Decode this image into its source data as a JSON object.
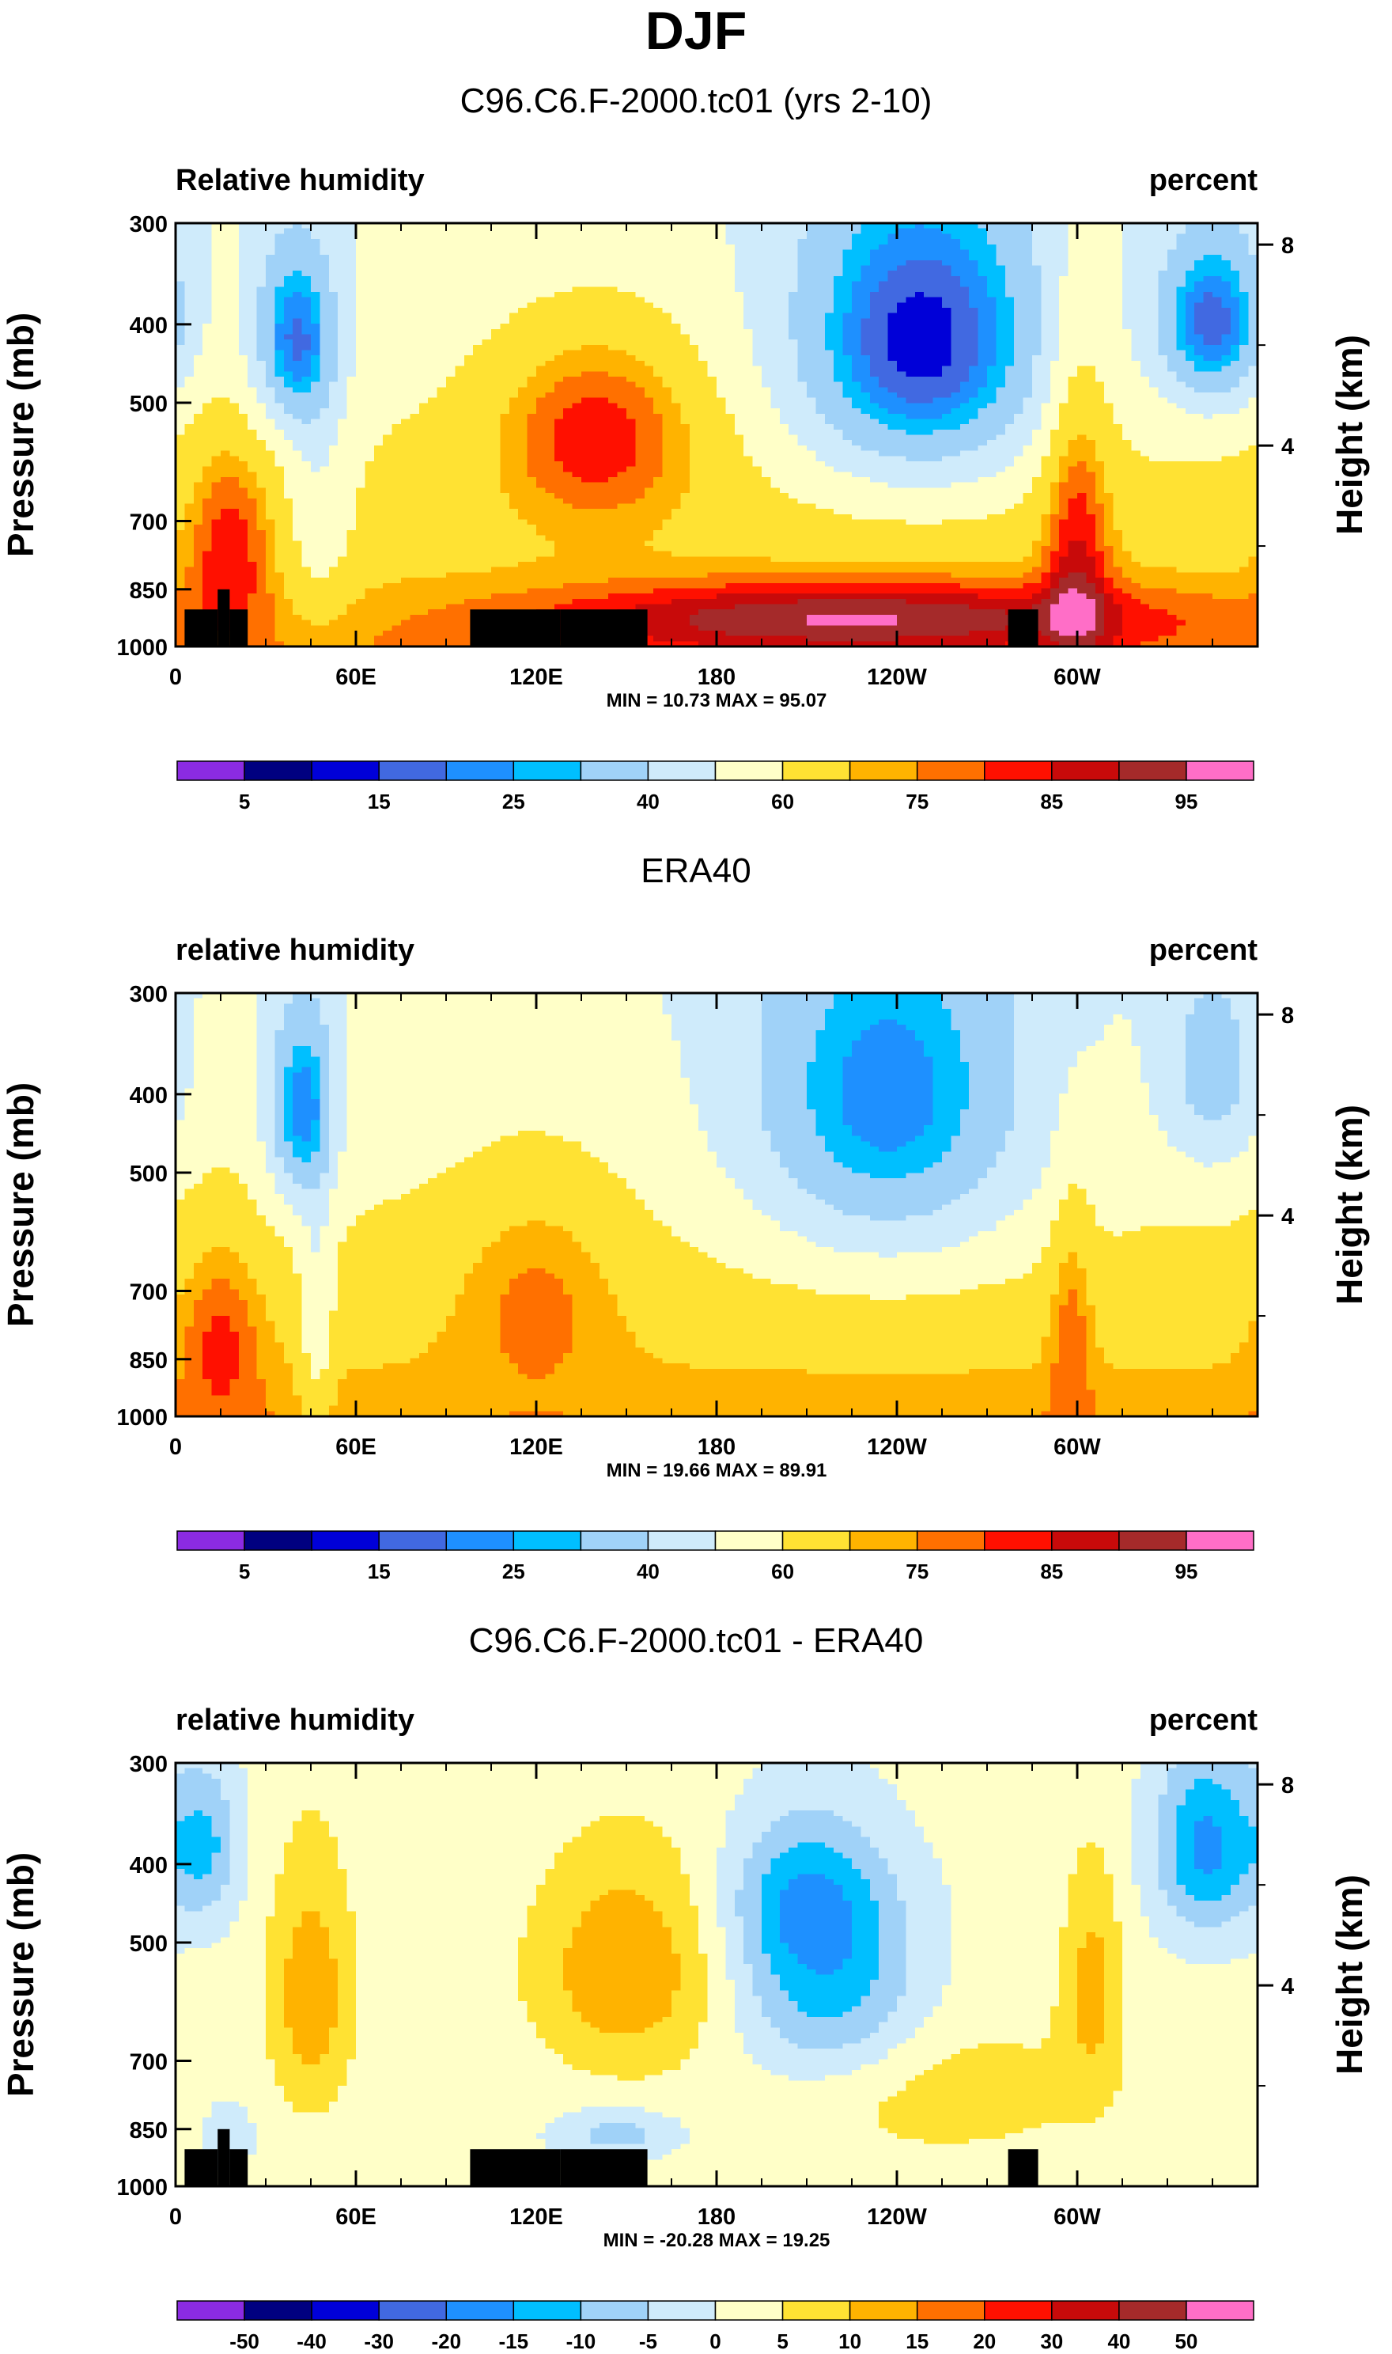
{
  "figure": {
    "title": "DJF"
  },
  "colors": {
    "levels_palette": [
      "#8b2be2",
      "#000080",
      "#0000d8",
      "#4169e1",
      "#1e90ff",
      "#00bfff",
      "#a0d2f8",
      "#cfebfb",
      "#ffffc8",
      "#ffe233",
      "#ffb300",
      "#ff7000",
      "#ff1000",
      "#c80a0a",
      "#a52a2a",
      "#ff6ec7"
    ],
    "mask": "#000000"
  },
  "chart_data": [
    {
      "type": "heatmap",
      "title": "C96.C6.F-2000.tc01 (yrs 2-10)",
      "left_label": "Relative humidity",
      "right_label": "percent",
      "ylabel": "Pressure (mb)",
      "y2label": "Height (km)",
      "y_ticks": [
        "300",
        "400",
        "500",
        "700",
        "850",
        "1000"
      ],
      "y_tick_values": [
        300,
        400,
        500,
        700,
        850,
        1000
      ],
      "y2_ticks": [
        "8",
        "4"
      ],
      "y2_tick_values": [
        8,
        4
      ],
      "x_ticks": [
        "0",
        "60E",
        "120E",
        "180",
        "120W",
        "60W"
      ],
      "x_tick_values": [
        0,
        60,
        120,
        180,
        240,
        300
      ],
      "xlim": [
        0,
        360
      ],
      "ylim": [
        1000,
        300
      ],
      "stats": "MIN = 10.73  MAX = 95.07",
      "colorbar_labels": [
        "5",
        "15",
        "25",
        "40",
        "60",
        "75",
        "85",
        "95"
      ],
      "levels": [
        5,
        10,
        15,
        20,
        25,
        30,
        40,
        50,
        60,
        70,
        75,
        80,
        85,
        90,
        95
      ],
      "mask": true,
      "field": "rh"
    },
    {
      "type": "heatmap",
      "title": "ERA40",
      "left_label": "relative humidity",
      "right_label": "percent",
      "ylabel": "Pressure (mb)",
      "y2label": "Height (km)",
      "y_ticks": [
        "300",
        "400",
        "500",
        "700",
        "850",
        "1000"
      ],
      "y_tick_values": [
        300,
        400,
        500,
        700,
        850,
        1000
      ],
      "y2_ticks": [
        "8",
        "4"
      ],
      "y2_tick_values": [
        8,
        4
      ],
      "x_ticks": [
        "0",
        "60E",
        "120E",
        "180",
        "120W",
        "60W"
      ],
      "x_tick_values": [
        0,
        60,
        120,
        180,
        240,
        300
      ],
      "xlim": [
        0,
        360
      ],
      "ylim": [
        1000,
        300
      ],
      "stats": "MIN = 19.66  MAX = 89.91",
      "colorbar_labels": [
        "5",
        "15",
        "25",
        "40",
        "60",
        "75",
        "85",
        "95"
      ],
      "levels": [
        5,
        10,
        15,
        20,
        25,
        30,
        40,
        50,
        60,
        70,
        75,
        80,
        85,
        90,
        95
      ],
      "mask": false,
      "field": "era"
    },
    {
      "type": "heatmap",
      "title": "C96.C6.F-2000.tc01 - ERA40",
      "left_label": "relative humidity",
      "right_label": "percent",
      "ylabel": "Pressure (mb)",
      "y2label": "Height (km)",
      "y_ticks": [
        "300",
        "400",
        "500",
        "700",
        "850",
        "1000"
      ],
      "y_tick_values": [
        300,
        400,
        500,
        700,
        850,
        1000
      ],
      "y2_ticks": [
        "8",
        "4"
      ],
      "y2_tick_values": [
        8,
        4
      ],
      "x_ticks": [
        "0",
        "60E",
        "120E",
        "180",
        "120W",
        "60W"
      ],
      "x_tick_values": [
        0,
        60,
        120,
        180,
        240,
        300
      ],
      "xlim": [
        0,
        360
      ],
      "ylim": [
        1000,
        300
      ],
      "stats": "MIN = -20.28  MAX = 19.25",
      "colorbar_labels": [
        "-50",
        "-40",
        "-30",
        "-20",
        "-15",
        "-10",
        "-5",
        "0",
        "5",
        "10",
        "15",
        "20",
        "30",
        "40",
        "50"
      ],
      "levels": [
        -50,
        -40,
        -30,
        -20,
        -15,
        -10,
        -5,
        0,
        5,
        10,
        15,
        20,
        30,
        40,
        50
      ],
      "mask": true,
      "field": "diff"
    }
  ]
}
